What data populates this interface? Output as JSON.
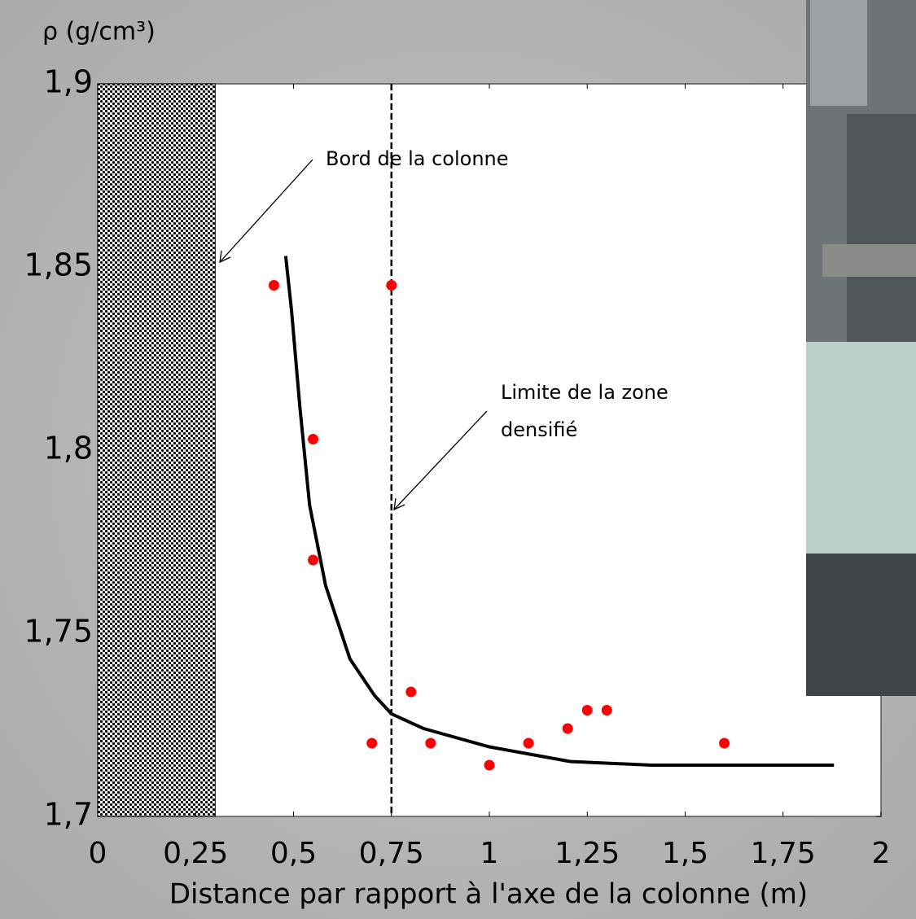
{
  "chart_data": {
    "type": "scatter",
    "y_label": "ρ (g/cm³)",
    "x_label": "Distance par rapport à l'axe de la colonne (m)",
    "xlim": [
      0,
      2
    ],
    "ylim": [
      1.7,
      1.9
    ],
    "xticks": [
      0,
      {
        "value": 0.25,
        "label": "0,25"
      },
      {
        "value": 0.5,
        "label": "0,5"
      },
      {
        "value": 0.75,
        "label": "0,75"
      },
      1,
      {
        "value": 1.25,
        "label": "1,25"
      },
      {
        "value": 1.5,
        "label": "1,5"
      },
      {
        "value": 1.75,
        "label": "1,75"
      },
      2
    ],
    "yticks": [
      {
        "value": 1.7,
        "label": "1,7"
      },
      {
        "value": 1.75,
        "label": "1,75"
      },
      {
        "value": 1.8,
        "label": "1,8"
      },
      {
        "value": 1.85,
        "label": "1,85"
      },
      {
        "value": 1.9,
        "label": "1,9"
      }
    ],
    "points": {
      "color": "#ff0000",
      "x": [
        0.45,
        0.75,
        0.55,
        0.55,
        0.7,
        0.8,
        0.85,
        1.0,
        1.1,
        1.2,
        1.25,
        1.3,
        1.6
      ],
      "y": [
        1.845,
        1.845,
        1.803,
        1.77,
        1.72,
        1.734,
        1.72,
        1.714,
        1.72,
        1.724,
        1.729,
        1.729,
        1.72
      ]
    },
    "fit": {
      "color": "#000000",
      "x": [
        0.48,
        0.495,
        0.516,
        0.541,
        0.582,
        0.644,
        0.707,
        0.75,
        0.832,
        1.0,
        1.206,
        1.414,
        1.88
      ],
      "y": [
        1.853,
        1.838,
        1.812,
        1.785,
        1.763,
        1.743,
        1.733,
        1.728,
        1.724,
        1.719,
        1.715,
        1.714,
        1.714
      ]
    },
    "shaded_region": [
      0,
      0.3
    ],
    "vline": 0.75,
    "annotations": [
      {
        "lines": [
          "Bord de la colonne"
        ]
      },
      {
        "lines": [
          "Limite de la zone",
          "densifié"
        ]
      }
    ]
  }
}
